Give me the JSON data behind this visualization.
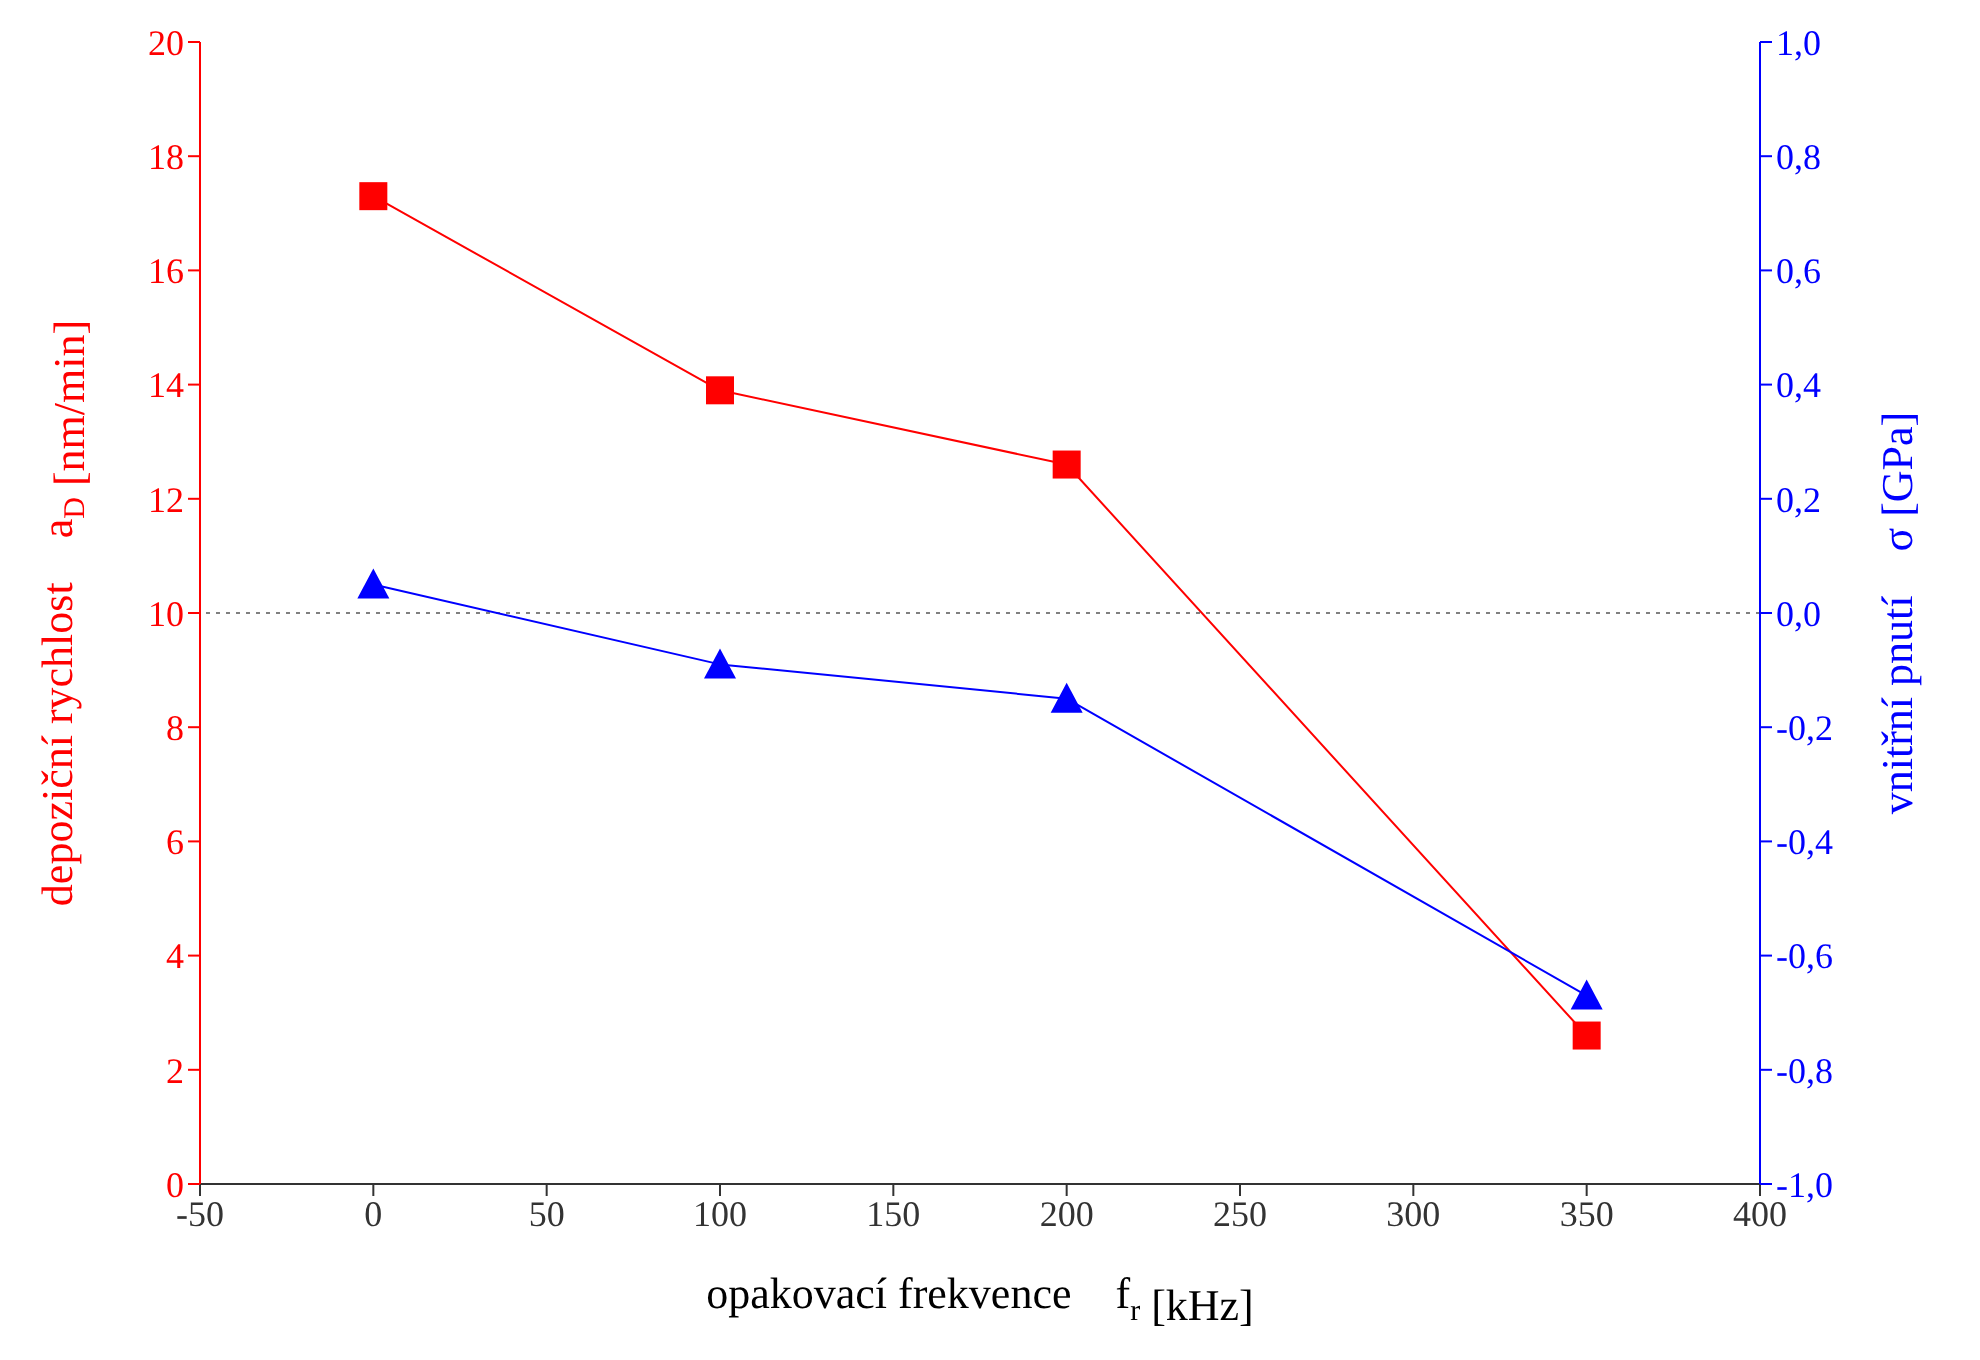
{
  "chart_data": {
    "type": "line",
    "xlabel": "opakovací frekvence    f$_{r}$ [kHz]",
    "ylabel": "depoziční rychlost    a$_{D}$ [nm/min]",
    "y2label": "vnitřní pnutí    σ [GPa]",
    "x": [
      0,
      100,
      200,
      350
    ],
    "series": [
      {
        "color": "#ff0000",
        "marker": "square",
        "values": [
          17.3,
          13.9,
          12.6,
          2.6
        ]
      },
      {
        "color": "#0000ff",
        "marker": "triangle",
        "axis": "y2",
        "values": [
          0.05,
          -0.09,
          -0.15,
          -0.67
        ]
      }
    ],
    "xlim": [
      -50,
      400
    ],
    "xticks": [
      -50,
      0,
      50,
      100,
      150,
      200,
      250,
      300,
      350,
      400
    ],
    "ylim": [
      0,
      20
    ],
    "yticks": [
      0,
      2,
      4,
      6,
      8,
      10,
      12,
      14,
      16,
      18,
      20
    ],
    "y2lim": [
      -1,
      1
    ],
    "y2ticks": [
      {
        "value": -1,
        "label": "-1,0"
      },
      {
        "value": -0.8,
        "label": "-0,8"
      },
      {
        "value": -0.6,
        "label": "-0,6"
      },
      {
        "value": -0.4,
        "label": "-0,4"
      },
      {
        "value": -0.2,
        "label": "-0,2"
      },
      {
        "value": 0,
        "label": "0,0"
      },
      {
        "value": 0.2,
        "label": "0,2"
      },
      {
        "value": 0.4,
        "label": "0,4"
      },
      {
        "value": 0.6,
        "label": "0,6"
      },
      {
        "value": 0.8,
        "label": "0,8"
      },
      {
        "value": 1,
        "label": "1,0"
      }
    ],
    "ref_lines": [
      {
        "axis": "y2",
        "value": 0,
        "color": "#808080",
        "line_style": "dotted"
      }
    ],
    "grid": false,
    "legend": false
  }
}
